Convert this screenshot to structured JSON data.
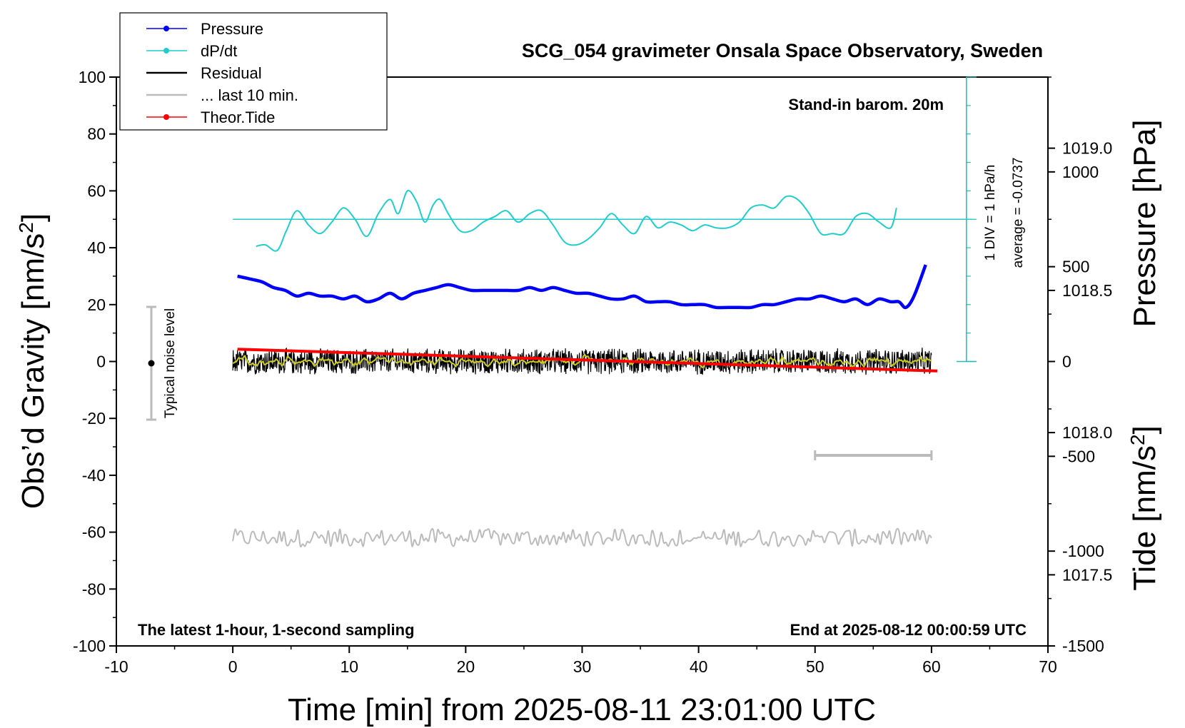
{
  "chart_data": {
    "type": "line",
    "title": "SCG_054 gravimeter Onsala Space Observatory, Sweden",
    "xlabel": "Time [min] from 2025-08-11 23:01:00 UTC",
    "ylabel_left": "Obs’d Gravity [nm/s",
    "ylabel_left_sup": "2",
    "ylabel_left_end": "]",
    "ylabel_right_top": "Pressure [hPa]",
    "ylabel_right_bottom": "Tide [nm/s",
    "ylabel_right_bottom_sup": "2",
    "ylabel_right_bottom_end": "]",
    "xlim": [
      -10,
      70
    ],
    "ylim_left": [
      -100,
      100
    ],
    "ylim_pressure": [
      1017.25,
      1019.25
    ],
    "ylim_tide": [
      -1500,
      1500
    ],
    "x_ticks": [
      "-10",
      "0",
      "10",
      "20",
      "30",
      "40",
      "50",
      "60",
      "70"
    ],
    "y_left_ticks": [
      "100",
      "80",
      "60",
      "40",
      "20",
      "0",
      "-20",
      "-40",
      "-60",
      "-80",
      "-100"
    ],
    "y_pressure_ticks": [
      "1019.0",
      "1018.5",
      "1018.0",
      "1017.5"
    ],
    "y_tide_ticks": [
      "1000",
      "500",
      "0",
      "-500",
      "-1000",
      "-1500"
    ],
    "annotations": {
      "barometer": "Stand-in barom. 20m",
      "div": "1 DIV = 1 hPa/h",
      "average": "average = -0.0737",
      "noise": "Typical noise level",
      "latest": "The latest 1-hour, 1-second sampling",
      "end": "End at 2025-08-12 00:00:59 UTC"
    },
    "legend": [
      {
        "label": "Pressure",
        "color": "#0000ff",
        "marker": true
      },
      {
        "label": "dP/dt",
        "color": "#22cccc",
        "marker": true
      },
      {
        "label": "Residual",
        "color": "#000000",
        "marker": false
      },
      {
        "label": "... last 10 min.",
        "color": "#bbbbbb",
        "marker": false
      },
      {
        "label": "Theor.Tide",
        "color": "#ff0000",
        "marker": true
      }
    ],
    "series": [
      {
        "name": "Pressure",
        "axis": "pressure",
        "color": "#0000ff",
        "x": [
          0.4,
          1.5,
          2.5,
          3.5,
          4.5,
          5.5,
          6.5,
          7.5,
          8.5,
          9.5,
          10.5,
          11.5,
          12.5,
          13.5,
          14.5,
          15.5,
          16.5,
          17.5,
          18.5,
          19.5,
          20.5,
          21.5,
          22.5,
          23.5,
          24.5,
          25.5,
          26.5,
          27.5,
          28.5,
          29.5,
          30.5,
          31.5,
          32.5,
          33.5,
          34.5,
          35.5,
          36.5,
          37.5,
          38.5,
          39.5,
          40.5,
          41.5,
          42.5,
          43.5,
          44.5,
          45.5,
          46.5,
          47.5,
          48.5,
          49.5,
          50.5,
          51.5,
          52.5,
          53.5,
          54.5,
          55.5,
          56.5,
          57.2,
          57.8,
          58.5,
          59.5
        ],
        "y": [
          1018.55,
          1018.54,
          1018.53,
          1018.51,
          1018.5,
          1018.48,
          1018.49,
          1018.48,
          1018.48,
          1018.47,
          1018.48,
          1018.46,
          1018.47,
          1018.49,
          1018.47,
          1018.49,
          1018.5,
          1018.51,
          1018.52,
          1018.51,
          1018.5,
          1018.5,
          1018.5,
          1018.5,
          1018.5,
          1018.51,
          1018.5,
          1018.51,
          1018.5,
          1018.49,
          1018.49,
          1018.48,
          1018.47,
          1018.47,
          1018.48,
          1018.46,
          1018.46,
          1018.46,
          1018.45,
          1018.45,
          1018.45,
          1018.44,
          1018.44,
          1018.44,
          1018.44,
          1018.45,
          1018.45,
          1018.46,
          1018.47,
          1018.47,
          1018.48,
          1018.47,
          1018.46,
          1018.47,
          1018.45,
          1018.47,
          1018.46,
          1018.46,
          1018.44,
          1018.48,
          1018.59
        ]
      },
      {
        "name": "dP/dt",
        "axis": "left",
        "color": "#22cccc",
        "x": [
          2,
          2.8,
          3.8,
          4.6,
          5.5,
          6.5,
          7.5,
          8.5,
          9.5,
          10.5,
          11.5,
          12.5,
          13.5,
          14.2,
          15,
          15.8,
          16.5,
          17.2,
          17.8,
          18.5,
          19.5,
          20.5,
          21.5,
          22.5,
          23.5,
          24.5,
          25.5,
          26.5,
          27.5,
          28.5,
          29.5,
          30.5,
          31.5,
          32.5,
          33.5,
          34.5,
          35.5,
          36.5,
          37.5,
          38.5,
          39.5,
          40.5,
          41.5,
          42.5,
          43.5,
          44.5,
          45.5,
          46.5,
          47.5,
          48.5,
          49.5,
          50.5,
          51.5,
          52.5,
          53.5,
          54.5,
          55.5,
          56.5,
          57
        ],
        "y": [
          40.5,
          41,
          39,
          46,
          53,
          48,
          45,
          49,
          54,
          50,
          44,
          52,
          57,
          52,
          60,
          56,
          49,
          55,
          57,
          52,
          46,
          46,
          49,
          51,
          53,
          49,
          52,
          53,
          48,
          42,
          41,
          43,
          47,
          52,
          48,
          45,
          51,
          47,
          49,
          48,
          46,
          48,
          47,
          47,
          49,
          54,
          55,
          54,
          58,
          57,
          52,
          45,
          45,
          45,
          51,
          52,
          49,
          47,
          54
        ]
      },
      {
        "name": "Residual",
        "axis": "left",
        "color": "#000000",
        "x_range": [
          0,
          60
        ],
        "mean": 0,
        "amplitude": 5
      },
      {
        "name": "... last 10 min.",
        "axis": "left",
        "color": "#bbbbbb",
        "x_range": [
          0,
          60
        ],
        "mean": -62,
        "amplitude": 3
      },
      {
        "name": "Theor.Tide",
        "axis": "tide",
        "color": "#ff0000",
        "x": [
          0.4,
          60.5
        ],
        "y": [
          65,
          -50
        ]
      }
    ],
    "reference_line_left": 50,
    "scale_bar": {
      "x": [
        50,
        60
      ],
      "y_left": -33
    }
  }
}
